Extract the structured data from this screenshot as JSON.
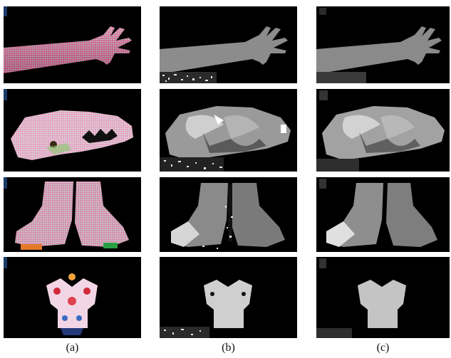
{
  "captions": [
    "(a)",
    "(b)",
    "(c)"
  ],
  "rows": [
    "hand",
    "skull",
    "boots",
    "figurine"
  ],
  "colors": {
    "background": "#000000",
    "pattern_red": "#e8407a",
    "pattern_pink": "#f3a6c9",
    "depth_mid": "#8a8a8a",
    "depth_light": "#d8d8d8"
  }
}
